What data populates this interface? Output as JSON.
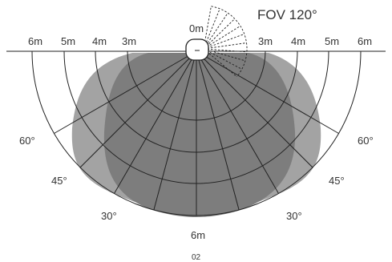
{
  "title": "FOV 120°",
  "sensor_label": "0m",
  "range_labels_left": [
    "6m",
    "5m",
    "4m",
    "3m"
  ],
  "range_labels_right": [
    "3m",
    "4m",
    "5m",
    "6m"
  ],
  "bottom_label": "6m",
  "angle_labels": {
    "left_60": "60°",
    "right_60": "60°",
    "left_45": "45°",
    "right_45": "45°",
    "left_30": "30°",
    "right_30": "30°"
  },
  "page_number": "02",
  "colors": {
    "outer_zone": "#a3a3a3",
    "inner_zone": "#7d7d7d",
    "lines": "#222222",
    "background": "#ffffff"
  }
}
